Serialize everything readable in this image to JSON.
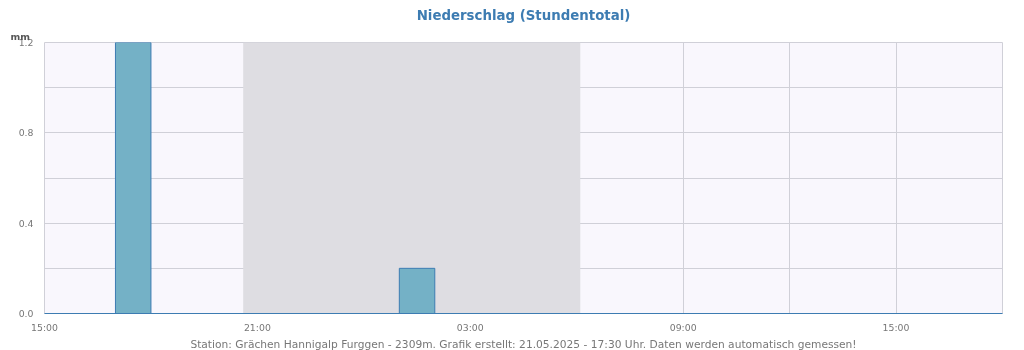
{
  "chart_data": {
    "type": "bar",
    "title": "Niederschlag (Stundentotal)",
    "ylabel": "mm",
    "x": [
      "2025-05-20T15:30",
      "2025-05-20T16:30",
      "2025-05-20T17:30",
      "2025-05-20T18:30",
      "2025-05-20T19:30",
      "2025-05-20T20:30",
      "2025-05-20T21:30",
      "2025-05-20T22:30",
      "2025-05-20T23:30",
      "2025-05-21T00:30",
      "2025-05-21T01:30",
      "2025-05-21T02:30",
      "2025-05-21T03:30",
      "2025-05-21T04:30",
      "2025-05-21T05:30",
      "2025-05-21T06:30",
      "2025-05-21T07:30",
      "2025-05-21T08:30",
      "2025-05-21T09:30",
      "2025-05-21T10:30",
      "2025-05-21T11:30",
      "2025-05-21T12:30",
      "2025-05-21T13:30",
      "2025-05-21T14:30",
      "2025-05-21T15:30",
      "2025-05-21T16:30",
      "2025-05-21T17:30"
    ],
    "values": [
      0,
      0,
      1.2,
      0,
      0,
      0,
      0,
      0,
      0,
      0,
      0.2,
      0,
      0,
      0,
      0,
      0,
      0,
      0,
      0,
      0,
      0,
      0,
      0,
      0,
      0,
      0,
      0
    ],
    "color": "#74b1c6",
    "xlim": [
      "2025-05-20T15:00",
      "2025-05-21T18:00"
    ],
    "xticks": [
      {
        "value": "2025-05-20T15:00",
        "label": "15:00"
      },
      {
        "value": "2025-05-20T18:00",
        "label": null
      },
      {
        "value": "2025-05-20T21:00",
        "label": "21:00"
      },
      {
        "value": "2025-05-21T00:00",
        "label": null
      },
      {
        "value": "2025-05-21T03:00",
        "label": "03:00"
      },
      {
        "value": "2025-05-21T06:00",
        "label": null
      },
      {
        "value": "2025-05-21T09:00",
        "label": "09:00"
      },
      {
        "value": "2025-05-21T12:00",
        "label": null
      },
      {
        "value": "2025-05-21T15:00",
        "label": "15:00"
      },
      {
        "value": "2025-05-21T18:00",
        "label": null
      }
    ],
    "ylim": [
      0,
      1.2
    ],
    "yticks": [
      {
        "value": 0,
        "label": "0.0"
      },
      {
        "value": 0.2,
        "label": null
      },
      {
        "value": 0.4,
        "label": "0.4"
      },
      {
        "value": 0.6,
        "label": null
      },
      {
        "value": 0.8,
        "label": "0.8"
      },
      {
        "value": 1.0,
        "label": null
      },
      {
        "value": 1.2,
        "label": "1.2"
      }
    ],
    "grid": true,
    "bands": [
      {
        "axis": "x",
        "from": "2025-05-20T20:36",
        "to": "2025-05-21T06:06",
        "color": "#dedde2"
      }
    ],
    "annotations": [
      "Station: Grächen Hannigalp Furggen - 2309m. Grafik erstellt: 21.05.2025 - 17:30 Uhr. Daten werden automatisch gemessen!"
    ]
  }
}
